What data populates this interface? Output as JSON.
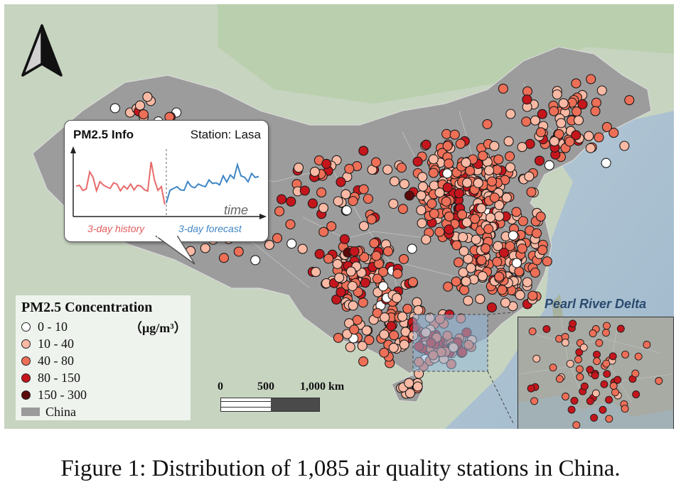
{
  "callout": {
    "title": "PM2.5 Info",
    "station": "Station: Lasa",
    "axis_label": "time",
    "history_label": "3-day history",
    "forecast_label": "3-day forecast",
    "history_color": "#e86a6a",
    "forecast_color": "#3f86c6"
  },
  "legend": {
    "title": "PM2.5 Concentration",
    "unit": "（μg/m³）",
    "classes": [
      {
        "label": "0 - 10",
        "color": "#ffffff"
      },
      {
        "label": "10 - 40",
        "color": "#f9b9a4"
      },
      {
        "label": "40 - 80",
        "color": "#ee6f57"
      },
      {
        "label": "80 - 150",
        "color": "#c4161c"
      },
      {
        "label": "150 - 300",
        "color": "#5c0a0a"
      }
    ],
    "country_label": "China",
    "country_color": "#9a9a9a"
  },
  "scale_bar": {
    "labels": [
      "0",
      "500",
      "1,000 km"
    ]
  },
  "inset": {
    "label": "Pearl River Delta"
  },
  "north_arrow": "north-arrow-icon",
  "caption": "Figure 1: Distribution of 1,085 air quality stations in China."
}
